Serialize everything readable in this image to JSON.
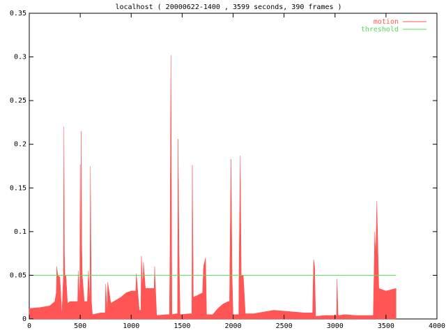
{
  "chart_data": {
    "type": "area",
    "title": "localhost ( 20000622-1400 , 3599 seconds, 390 frames )",
    "series": [
      {
        "name": "motion",
        "color": "#ff5555",
        "x": [
          0,
          100,
          200,
          250,
          265,
          270,
          280,
          300,
          320,
          335,
          340,
          345,
          350,
          360,
          375,
          400,
          450,
          475,
          480,
          495,
          500,
          505,
          510,
          515,
          520,
          540,
          570,
          580,
          595,
          600,
          605,
          610,
          620,
          700,
          745,
          750,
          765,
          770,
          800,
          900,
          950,
          1000,
          1045,
          1050,
          1080,
          1095,
          1100,
          1115,
          1120,
          1140,
          1200,
          1225,
          1230,
          1250,
          1350,
          1375,
          1380,
          1390,
          1400,
          1440,
          1455,
          1460,
          1470,
          1480,
          1580,
          1595,
          1600,
          1610,
          1650,
          1700,
          1710,
          1730,
          1740,
          1800,
          1850,
          1900,
          1950,
          1965,
          1970,
          1980,
          1990,
          2000,
          2055,
          2060,
          2070,
          2080,
          2100,
          2120,
          2200,
          2300,
          2400,
          2500,
          2600,
          2700,
          2780,
          2790,
          2800,
          2810,
          2900,
          3000,
          3015,
          3020,
          3030,
          3100,
          3200,
          3350,
          3375,
          3380,
          3390,
          3400,
          3410,
          3420,
          3430,
          3500,
          3599
        ],
        "values": [
          0.012,
          0.013,
          0.015,
          0.02,
          0.03,
          0.06,
          0.05,
          0.048,
          0.005,
          0.05,
          0.22,
          0.075,
          0.05,
          0.05,
          0.018,
          0.02,
          0.02,
          0.02,
          0.055,
          0.02,
          0.177,
          0.05,
          0.215,
          0.085,
          0.05,
          0.02,
          0.02,
          0.055,
          0.02,
          0.175,
          0.09,
          0.02,
          0.005,
          0.007,
          0.007,
          0.04,
          0.007,
          0.042,
          0.018,
          0.025,
          0.03,
          0.032,
          0.032,
          0.052,
          0.01,
          0.01,
          0.072,
          0.035,
          0.065,
          0.035,
          0.035,
          0.035,
          0.06,
          0.004,
          0.005,
          0.005,
          0.062,
          0.302,
          0.005,
          0.006,
          0.006,
          0.206,
          0.073,
          0.005,
          0.006,
          0.006,
          0.176,
          0.025,
          0.027,
          0.03,
          0.06,
          0.07,
          0.005,
          0.005,
          0.012,
          0.017,
          0.02,
          0.02,
          0.082,
          0.183,
          0.05,
          0.005,
          0.005,
          0.075,
          0.187,
          0.05,
          0.05,
          0.006,
          0.006,
          0.008,
          0.01,
          0.009,
          0.008,
          0.007,
          0.007,
          0.068,
          0.06,
          0.003,
          0.004,
          0.004,
          0.004,
          0.046,
          0.004,
          0.005,
          0.004,
          0.004,
          0.004,
          0.035,
          0.1,
          0.072,
          0.135,
          0.085,
          0.035,
          0.032,
          0.035
        ]
      },
      {
        "name": "threshold",
        "color": "#55dd55",
        "x": [
          0,
          3599
        ],
        "values": [
          0.05,
          0.05
        ]
      }
    ],
    "xlim": [
      0,
      4000
    ],
    "xticks": [
      0,
      500,
      1000,
      1500,
      2000,
      2500,
      3000,
      3500,
      4000
    ],
    "ylim": [
      0,
      0.35
    ],
    "yticks": [
      0,
      0.05,
      0.1,
      0.15,
      0.2,
      0.25,
      0.3,
      0.35
    ],
    "legend": "top-right"
  }
}
